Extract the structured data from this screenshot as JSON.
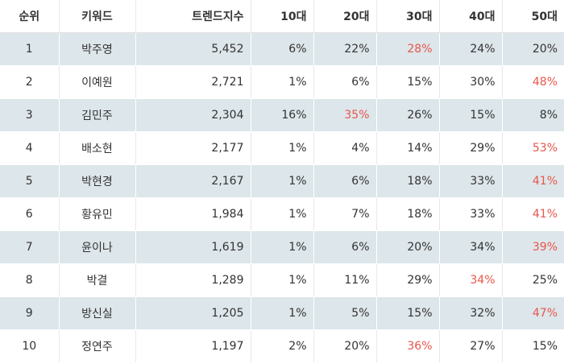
{
  "headers": {
    "rank": "순위",
    "keyword": "키워드",
    "trend": "트렌드지수",
    "age10": "10대",
    "age20": "20대",
    "age30": "30대",
    "age40": "40대",
    "age50": "50대"
  },
  "highlight_color": "#e8564b",
  "stripe_color": "#dde6ea",
  "rows": [
    {
      "rank": "1",
      "keyword": "박주영",
      "trend": "5,452",
      "age10": "6%",
      "age20": "22%",
      "age30": "28%",
      "age40": "24%",
      "age50": "20%",
      "highlight": "age30"
    },
    {
      "rank": "2",
      "keyword": "이예원",
      "trend": "2,721",
      "age10": "1%",
      "age20": "6%",
      "age30": "15%",
      "age40": "30%",
      "age50": "48%",
      "highlight": "age50"
    },
    {
      "rank": "3",
      "keyword": "김민주",
      "trend": "2,304",
      "age10": "16%",
      "age20": "35%",
      "age30": "26%",
      "age40": "15%",
      "age50": "8%",
      "highlight": "age20"
    },
    {
      "rank": "4",
      "keyword": "배소현",
      "trend": "2,177",
      "age10": "1%",
      "age20": "4%",
      "age30": "14%",
      "age40": "29%",
      "age50": "53%",
      "highlight": "age50"
    },
    {
      "rank": "5",
      "keyword": "박현경",
      "trend": "2,167",
      "age10": "1%",
      "age20": "6%",
      "age30": "18%",
      "age40": "33%",
      "age50": "41%",
      "highlight": "age50"
    },
    {
      "rank": "6",
      "keyword": "황유민",
      "trend": "1,984",
      "age10": "1%",
      "age20": "7%",
      "age30": "18%",
      "age40": "33%",
      "age50": "41%",
      "highlight": "age50"
    },
    {
      "rank": "7",
      "keyword": "윤이나",
      "trend": "1,619",
      "age10": "1%",
      "age20": "6%",
      "age30": "20%",
      "age40": "34%",
      "age50": "39%",
      "highlight": "age50"
    },
    {
      "rank": "8",
      "keyword": "박결",
      "trend": "1,289",
      "age10": "1%",
      "age20": "11%",
      "age30": "29%",
      "age40": "34%",
      "age50": "25%",
      "highlight": "age40"
    },
    {
      "rank": "9",
      "keyword": "방신실",
      "trend": "1,205",
      "age10": "1%",
      "age20": "5%",
      "age30": "15%",
      "age40": "32%",
      "age50": "47%",
      "highlight": "age50"
    },
    {
      "rank": "10",
      "keyword": "정연주",
      "trend": "1,197",
      "age10": "2%",
      "age20": "20%",
      "age30": "36%",
      "age40": "27%",
      "age50": "15%",
      "highlight": "age30"
    }
  ]
}
